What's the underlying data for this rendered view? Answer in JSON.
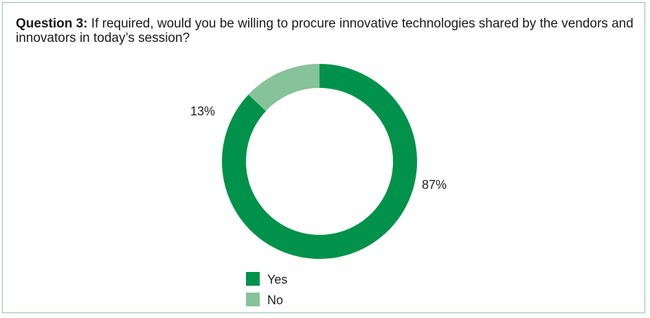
{
  "question": {
    "prefix": "Question 3:",
    "text": " If required, would you be willing to procure innovative technologies shared by the vendors and innovators in today’s session?"
  },
  "chart_data": {
    "type": "pie",
    "donut": true,
    "categories": [
      "Yes",
      "No"
    ],
    "values": [
      87,
      13
    ],
    "labels": [
      "87%",
      "13%"
    ],
    "colors": [
      "#00924a",
      "#86c29a"
    ],
    "legend_placement": "bottom",
    "legend": [
      "Yes",
      "No"
    ]
  }
}
